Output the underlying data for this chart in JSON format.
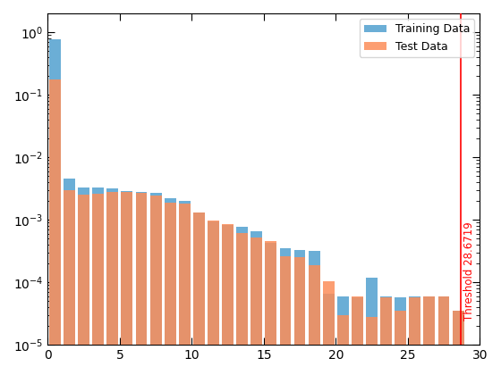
{
  "train_values": [
    0.78,
    0.0045,
    0.0033,
    0.0033,
    0.0032,
    0.0029,
    0.0028,
    0.0027,
    0.0022,
    0.002,
    0.0013,
    0.00095,
    0.00082,
    0.00078,
    0.00065,
    0.00042,
    0.00035,
    0.00033,
    0.00032,
    6.5e-05,
    6e-05,
    5.8e-05,
    0.00012,
    6e-05,
    5.8e-05,
    6e-05,
    6e-05,
    6e-05,
    3.5e-05,
    0.0
  ],
  "test_values": [
    0.175,
    0.003,
    0.0025,
    0.0026,
    0.0028,
    0.0028,
    0.0027,
    0.0024,
    0.0019,
    0.0018,
    0.0013,
    0.00098,
    0.00085,
    0.00062,
    0.00052,
    0.00045,
    0.00026,
    0.00025,
    0.00019,
    0.000105,
    3e-05,
    6e-05,
    2.8e-05,
    5.8e-05,
    3.5e-05,
    5.8e-05,
    6e-05,
    6e-05,
    3.5e-05,
    0.0
  ],
  "bin_edges": [
    0,
    1,
    2,
    3,
    4,
    5,
    6,
    7,
    8,
    9,
    10,
    11,
    12,
    13,
    14,
    15,
    16,
    17,
    18,
    19,
    20,
    21,
    22,
    23,
    24,
    25,
    26,
    27,
    28,
    29,
    30
  ],
  "train_color": "#6BAED6",
  "test_color": "#FC8D59",
  "threshold": 28.6719,
  "threshold_color": "red",
  "threshold_label": "Threshold 28.6719",
  "legend_labels": [
    "Training Data",
    "Test Data"
  ],
  "ylim_bottom": 1e-05,
  "ylim_top": 2.0,
  "xlim_left": 0,
  "xlim_right": 30,
  "bar_width": 0.8
}
